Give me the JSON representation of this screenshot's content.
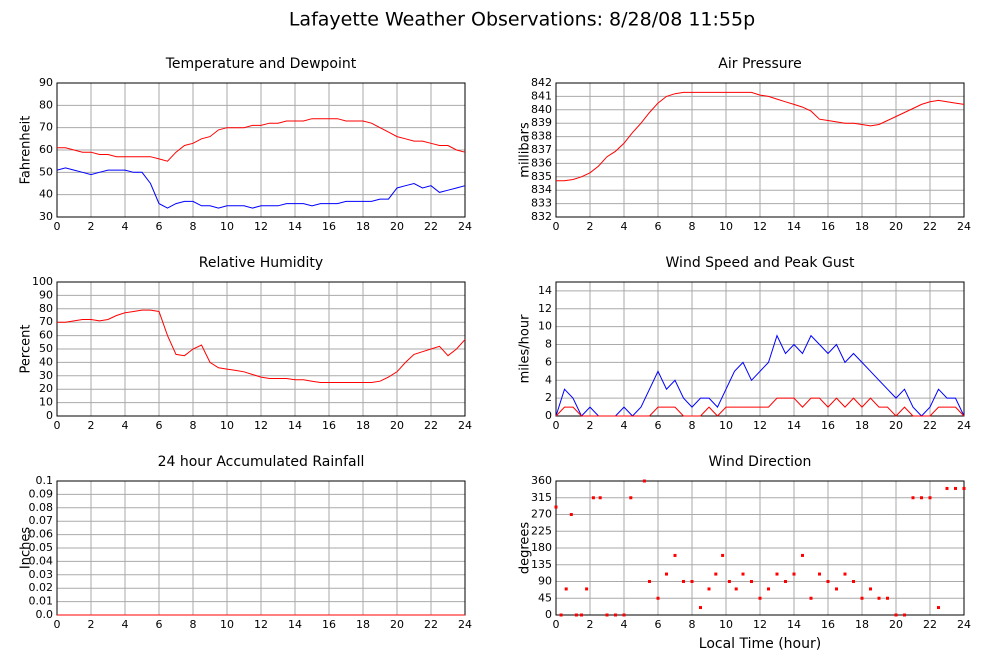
{
  "title": "Lafayette Weather Observations: 8/28/08 11:55p",
  "chart_data": [
    {
      "type": "line",
      "title": "Temperature and Dewpoint",
      "ylabel": "Fahrenheit",
      "x": [
        0,
        0.5,
        1,
        1.5,
        2,
        2.5,
        3,
        3.5,
        4,
        4.5,
        5,
        5.5,
        6,
        6.5,
        7,
        7.5,
        8,
        8.5,
        9,
        9.5,
        10,
        10.5,
        11,
        11.5,
        12,
        12.5,
        13,
        13.5,
        14,
        14.5,
        15,
        15.5,
        16,
        16.5,
        17,
        17.5,
        18,
        18.5,
        19,
        19.5,
        20,
        20.5,
        21,
        21.5,
        22,
        22.5,
        23,
        23.5,
        24
      ],
      "series": [
        {
          "color": "#ff0000",
          "values": [
            61,
            61,
            60,
            59,
            59,
            58,
            58,
            57,
            57,
            57,
            57,
            57,
            56,
            55,
            59,
            62,
            63,
            65,
            66,
            69,
            70,
            70,
            70,
            71,
            71,
            72,
            72,
            73,
            73,
            73,
            74,
            74,
            74,
            74,
            73,
            73,
            73,
            72,
            70,
            68,
            66,
            65,
            64,
            64,
            63,
            62,
            62,
            60,
            59
          ]
        },
        {
          "color": "#0000ff",
          "values": [
            51,
            52,
            51,
            50,
            49,
            50,
            51,
            51,
            51,
            50,
            50,
            45,
            36,
            34,
            36,
            37,
            37,
            35,
            35,
            34,
            35,
            35,
            35,
            34,
            35,
            35,
            35,
            36,
            36,
            36,
            35,
            36,
            36,
            36,
            37,
            37,
            37,
            37,
            38,
            38,
            43,
            44,
            45,
            43,
            44,
            41,
            42,
            43,
            44
          ]
        }
      ],
      "xlim": [
        0,
        24
      ],
      "xticks": [
        0,
        2,
        4,
        6,
        8,
        10,
        12,
        14,
        16,
        18,
        20,
        22,
        24
      ],
      "ylim": [
        30,
        90
      ],
      "yticks": [
        30,
        40,
        50,
        60,
        70,
        80,
        90
      ],
      "grid": true
    },
    {
      "type": "line",
      "title": "Air Pressure",
      "ylabel": "millibars",
      "x": [
        0,
        0.5,
        1,
        1.5,
        2,
        2.5,
        3,
        3.5,
        4,
        4.5,
        5,
        5.5,
        6,
        6.5,
        7,
        7.5,
        8,
        8.5,
        9,
        9.5,
        10,
        10.5,
        11,
        11.5,
        12,
        12.5,
        13,
        13.5,
        14,
        14.5,
        15,
        15.5,
        16,
        16.5,
        17,
        17.5,
        18,
        18.5,
        19,
        19.5,
        20,
        20.5,
        21,
        21.5,
        22,
        22.5,
        23,
        23.5,
        24
      ],
      "series": [
        {
          "color": "#ff0000",
          "values": [
            834.7,
            834.7,
            834.8,
            835,
            835.3,
            835.8,
            836.5,
            836.9,
            837.5,
            838.3,
            839,
            839.8,
            840.5,
            841,
            841.2,
            841.3,
            841.3,
            841.3,
            841.3,
            841.3,
            841.3,
            841.3,
            841.3,
            841.3,
            841.1,
            841,
            840.8,
            840.6,
            840.4,
            840.2,
            839.9,
            839.3,
            839.2,
            839.1,
            839,
            839,
            838.9,
            838.8,
            838.9,
            839.2,
            839.5,
            839.8,
            840.1,
            840.4,
            840.6,
            840.7,
            840.6,
            840.5,
            840.4
          ]
        }
      ],
      "xlim": [
        0,
        24
      ],
      "xticks": [
        0,
        2,
        4,
        6,
        8,
        10,
        12,
        14,
        16,
        18,
        20,
        22,
        24
      ],
      "ylim": [
        832,
        842
      ],
      "yticks": [
        832,
        833,
        834,
        835,
        836,
        837,
        838,
        839,
        840,
        841,
        842
      ],
      "grid": true
    },
    {
      "type": "line",
      "title": "Relative Humidity",
      "ylabel": "Percent",
      "x": [
        0,
        0.5,
        1,
        1.5,
        2,
        2.5,
        3,
        3.5,
        4,
        4.5,
        5,
        5.5,
        6,
        6.5,
        7,
        7.5,
        8,
        8.5,
        9,
        9.5,
        10,
        10.5,
        11,
        11.5,
        12,
        12.5,
        13,
        13.5,
        14,
        14.5,
        15,
        15.5,
        16,
        16.5,
        17,
        17.5,
        18,
        18.5,
        19,
        19.5,
        20,
        20.5,
        21,
        21.5,
        22,
        22.5,
        23,
        23.5,
        24
      ],
      "series": [
        {
          "color": "#ff0000",
          "values": [
            70,
            70,
            71,
            72,
            72,
            71,
            72,
            75,
            77,
            78,
            79,
            79,
            78,
            60,
            46,
            45,
            50,
            53,
            40,
            36,
            35,
            34,
            33,
            31,
            29,
            28,
            28,
            28,
            27,
            27,
            26,
            25,
            25,
            25,
            25,
            25,
            25,
            25,
            26,
            29,
            33,
            40,
            46,
            48,
            50,
            52,
            45,
            50,
            57
          ]
        }
      ],
      "xlim": [
        0,
        24
      ],
      "xticks": [
        0,
        2,
        4,
        6,
        8,
        10,
        12,
        14,
        16,
        18,
        20,
        22,
        24
      ],
      "ylim": [
        0,
        100
      ],
      "yticks": [
        0,
        10,
        20,
        30,
        40,
        50,
        60,
        70,
        80,
        90,
        100
      ],
      "grid": true
    },
    {
      "type": "line",
      "title": "Wind Speed and Peak Gust",
      "ylabel": "miles/hour",
      "x": [
        0,
        0.5,
        1,
        1.5,
        2,
        2.5,
        3,
        3.5,
        4,
        4.5,
        5,
        5.5,
        6,
        6.5,
        7,
        7.5,
        8,
        8.5,
        9,
        9.5,
        10,
        10.5,
        11,
        11.5,
        12,
        12.5,
        13,
        13.5,
        14,
        14.5,
        15,
        15.5,
        16,
        16.5,
        17,
        17.5,
        18,
        18.5,
        19,
        19.5,
        20,
        20.5,
        21,
        21.5,
        22,
        22.5,
        23,
        23.5,
        24
      ],
      "series": [
        {
          "color": "#0000ff",
          "values": [
            0,
            3,
            2,
            0,
            1,
            0,
            0,
            0,
            1,
            0,
            1,
            3,
            5,
            3,
            4,
            2,
            1,
            2,
            2,
            1,
            3,
            5,
            6,
            4,
            5,
            6,
            9,
            7,
            8,
            7,
            9,
            8,
            7,
            8,
            6,
            7,
            6,
            5,
            4,
            3,
            2,
            3,
            1,
            0,
            1,
            3,
            2,
            2,
            0
          ]
        },
        {
          "color": "#ff0000",
          "values": [
            0,
            1,
            1,
            0,
            0,
            0,
            0,
            0,
            0,
            0,
            0,
            0,
            1,
            1,
            1,
            0,
            0,
            0,
            1,
            0,
            1,
            1,
            1,
            1,
            1,
            1,
            2,
            2,
            2,
            1,
            2,
            2,
            1,
            2,
            1,
            2,
            1,
            2,
            1,
            1,
            0,
            1,
            0,
            0,
            0,
            1,
            1,
            1,
            0
          ]
        }
      ],
      "xlim": [
        0,
        24
      ],
      "xticks": [
        0,
        2,
        4,
        6,
        8,
        10,
        12,
        14,
        16,
        18,
        20,
        22,
        24
      ],
      "ylim": [
        0,
        15
      ],
      "yticks": [
        0,
        2,
        4,
        6,
        8,
        10,
        12,
        14
      ],
      "grid": true
    },
    {
      "type": "line",
      "title": "24 hour Accumulated Rainfall",
      "ylabel": "Inches",
      "x": [
        0,
        24
      ],
      "series": [
        {
          "color": "#ff0000",
          "values": [
            0,
            0
          ]
        }
      ],
      "xlim": [
        0,
        24
      ],
      "xticks": [
        0,
        2,
        4,
        6,
        8,
        10,
        12,
        14,
        16,
        18,
        20,
        22,
        24
      ],
      "ylim": [
        0,
        0.1
      ],
      "yticks": [
        {
          "value": 0,
          "label": "0.0"
        },
        0.01,
        0.02,
        0.03,
        0.04,
        0.05,
        0.06,
        0.07,
        0.08,
        0.09,
        0.1
      ],
      "grid": true
    },
    {
      "type": "scatter",
      "title": "Wind Direction",
      "ylabel": "degrees",
      "xlabel": "Local Time (hour)",
      "x": [
        0,
        0.3,
        0.6,
        0.9,
        1.2,
        1.5,
        1.8,
        2.2,
        2.6,
        3,
        3.5,
        4,
        4.4,
        5.2,
        5.5,
        6,
        6.5,
        7,
        7.5,
        8,
        8.5,
        9,
        9.4,
        9.8,
        10.2,
        10.6,
        11,
        11.5,
        12,
        12.5,
        13,
        13.5,
        14,
        14.5,
        15,
        15.5,
        16,
        16.5,
        17,
        17.5,
        18,
        18.5,
        19,
        19.5,
        20,
        20.5,
        21,
        21.5,
        22,
        22.5,
        23,
        23.5,
        24
      ],
      "series": [
        {
          "color": "#ff0000",
          "values": [
            290,
            0,
            70,
            270,
            0,
            0,
            70,
            315,
            315,
            0,
            0,
            0,
            315,
            360,
            90,
            45,
            110,
            160,
            90,
            90,
            20,
            70,
            110,
            160,
            90,
            70,
            110,
            90,
            45,
            70,
            110,
            90,
            110,
            160,
            45,
            110,
            90,
            70,
            110,
            90,
            45,
            70,
            45,
            45,
            0,
            0,
            315,
            315,
            315,
            20,
            340,
            340,
            340
          ]
        }
      ],
      "xlim": [
        0,
        24
      ],
      "xticks": [
        0,
        2,
        4,
        6,
        8,
        10,
        12,
        14,
        16,
        18,
        20,
        22,
        24
      ],
      "ylim": [
        0,
        360
      ],
      "yticks": [
        0,
        45,
        90,
        135,
        180,
        225,
        270,
        315,
        360
      ],
      "grid": true
    }
  ]
}
